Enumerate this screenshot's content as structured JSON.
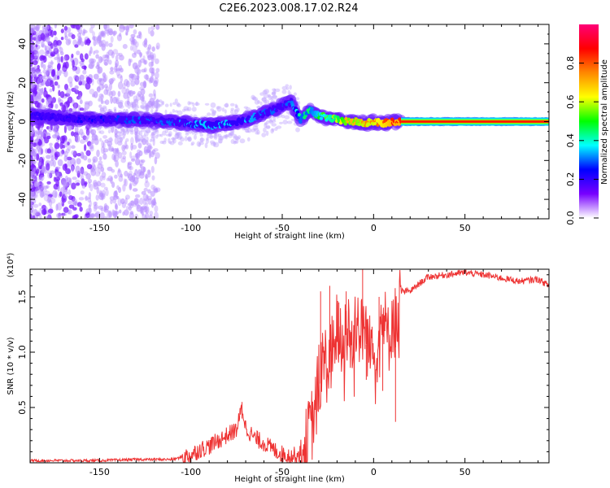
{
  "title": "C2E6.2023.008.17.02.R24",
  "chart_data": [
    {
      "type": "heatmap",
      "name": "spectrogram",
      "xlabel": "Height of straight line (km)",
      "ylabel": "Frequency (Hz)",
      "xlim": [
        -188,
        96
      ],
      "ylim": [
        -50,
        50
      ],
      "xticks": [
        -150,
        -100,
        -50,
        0,
        50
      ],
      "yticks": [
        -40,
        -20,
        0,
        20,
        40
      ],
      "colorbar": {
        "label": "Normalized spectral amplitude",
        "range": [
          0.0,
          1.0
        ],
        "ticks": [
          0.0,
          0.2,
          0.4,
          0.6,
          0.8
        ],
        "colors": [
          "#ffffff",
          "#7700ff",
          "#0000ff",
          "#00ffff",
          "#00ff00",
          "#ffff00",
          "#ff8800",
          "#ff0000",
          "#ff0077"
        ]
      },
      "ridge": {
        "x": [
          -188,
          -170,
          -150,
          -130,
          -110,
          -100,
          -90,
          -80,
          -70,
          -60,
          -55,
          -50,
          -45,
          -40,
          -35,
          -30,
          -25,
          -20,
          -15,
          -10,
          -5,
          0,
          5,
          10,
          15,
          30,
          50,
          70,
          96
        ],
        "y": [
          3,
          2,
          1,
          1,
          0,
          -1,
          -2,
          -1,
          1,
          4,
          6,
          8,
          10,
          1,
          6,
          3,
          2,
          1,
          0,
          0,
          -1,
          0,
          -1,
          0,
          0,
          0,
          0,
          0,
          0
        ],
        "amplitude": [
          0.2,
          0.2,
          0.25,
          0.3,
          0.3,
          0.35,
          0.35,
          0.35,
          0.35,
          0.3,
          0.3,
          0.3,
          0.3,
          0.45,
          0.45,
          0.5,
          0.55,
          0.6,
          0.7,
          0.7,
          0.75,
          0.75,
          0.8,
          0.85,
          0.85,
          0.88,
          0.88,
          0.88,
          0.88
        ]
      }
    },
    {
      "type": "line",
      "name": "snr",
      "xlabel": "Height of straight line (km)",
      "ylabel": "SNR (10 * v/v)",
      "scale_label": "(x10⁴)",
      "xlim": [
        -188,
        96
      ],
      "ylim": [
        0,
        1.75
      ],
      "xticks": [
        -150,
        -100,
        -50,
        0,
        50
      ],
      "yticks": [
        0.5,
        1.0,
        1.5
      ],
      "ytick_labels": [
        "0.5",
        "1.0",
        "1.5"
      ],
      "color": "#ee3333",
      "series": [
        {
          "name": "SNR",
          "x": [
            -188,
            -170,
            -150,
            -130,
            -110,
            -100,
            -95,
            -90,
            -85,
            -80,
            -75,
            -72,
            -70,
            -65,
            -60,
            -55,
            -50,
            -45,
            -40,
            -37,
            -35,
            -32,
            -30,
            -27,
            -25,
            -22,
            -20,
            -17,
            -15,
            -12,
            -10,
            -7,
            -5,
            -2,
            0,
            2,
            5,
            8,
            10,
            13,
            15,
            20,
            25,
            30,
            40,
            50,
            60,
            70,
            80,
            90,
            96
          ],
          "y": [
            0.02,
            0.02,
            0.02,
            0.03,
            0.03,
            0.07,
            0.12,
            0.15,
            0.2,
            0.25,
            0.3,
            0.5,
            0.32,
            0.22,
            0.18,
            0.12,
            0.08,
            0.06,
            0.08,
            0.15,
            0.28,
            0.45,
            0.75,
            0.95,
            0.85,
            1.05,
            1.25,
            0.95,
            1.3,
            1.05,
            1.35,
            1.15,
            1.25,
            1.0,
            1.2,
            1.05,
            1.35,
            1.1,
            1.3,
            1.25,
            1.55,
            1.55,
            1.62,
            1.68,
            1.7,
            1.72,
            1.7,
            1.67,
            1.64,
            1.66,
            1.6
          ]
        }
      ],
      "spikes": {
        "x": [
          -72,
          -29,
          -24,
          -19,
          -15,
          -6,
          -4,
          3,
          5,
          12
        ],
        "y": [
          0.55,
          1.55,
          1.6,
          1.45,
          1.55,
          1.75,
          0.75,
          1.5,
          0.65,
          0.37
        ]
      }
    }
  ]
}
